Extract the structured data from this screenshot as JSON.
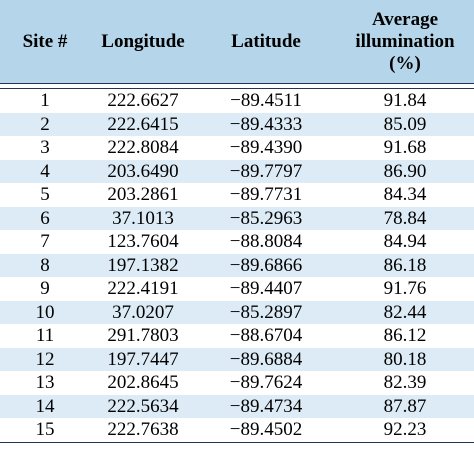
{
  "table": {
    "headers": {
      "site": "Site #",
      "longitude": "Longitude",
      "latitude": "Latitude",
      "illum_line1": "Average",
      "illum_line2": "illumination",
      "illum_line3": "(%)"
    },
    "rows": [
      {
        "site": "1",
        "longitude": "222.6627",
        "latitude": "−89.4511",
        "illumination": "91.84"
      },
      {
        "site": "2",
        "longitude": "222.6415",
        "latitude": "−89.4333",
        "illumination": "85.09"
      },
      {
        "site": "3",
        "longitude": "222.8084",
        "latitude": "−89.4390",
        "illumination": "91.68"
      },
      {
        "site": "4",
        "longitude": "203.6490",
        "latitude": "−89.7797",
        "illumination": "86.90"
      },
      {
        "site": "5",
        "longitude": "203.2861",
        "latitude": "−89.7731",
        "illumination": "84.34"
      },
      {
        "site": "6",
        "longitude": "37.1013",
        "latitude": "−85.2963",
        "illumination": "78.84"
      },
      {
        "site": "7",
        "longitude": "123.7604",
        "latitude": "−88.8084",
        "illumination": "84.94"
      },
      {
        "site": "8",
        "longitude": "197.1382",
        "latitude": "−89.6866",
        "illumination": "86.18"
      },
      {
        "site": "9",
        "longitude": "222.4191",
        "latitude": "−89.4407",
        "illumination": "91.76"
      },
      {
        "site": "10",
        "longitude": "37.0207",
        "latitude": "−85.2897",
        "illumination": "82.44"
      },
      {
        "site": "11",
        "longitude": "291.7803",
        "latitude": "−88.6704",
        "illumination": "86.12"
      },
      {
        "site": "12",
        "longitude": "197.7447",
        "latitude": "−89.6884",
        "illumination": "80.18"
      },
      {
        "site": "13",
        "longitude": "202.8645",
        "latitude": "−89.7624",
        "illumination": "82.39"
      },
      {
        "site": "14",
        "longitude": "222.5634",
        "latitude": "−89.4734",
        "illumination": "87.87"
      },
      {
        "site": "15",
        "longitude": "222.7638",
        "latitude": "−89.4502",
        "illumination": "92.23"
      }
    ]
  },
  "colors": {
    "header_bg": "#b5d6ea",
    "stripe_bg": "#dcebf5",
    "rule": "#1f3550"
  }
}
